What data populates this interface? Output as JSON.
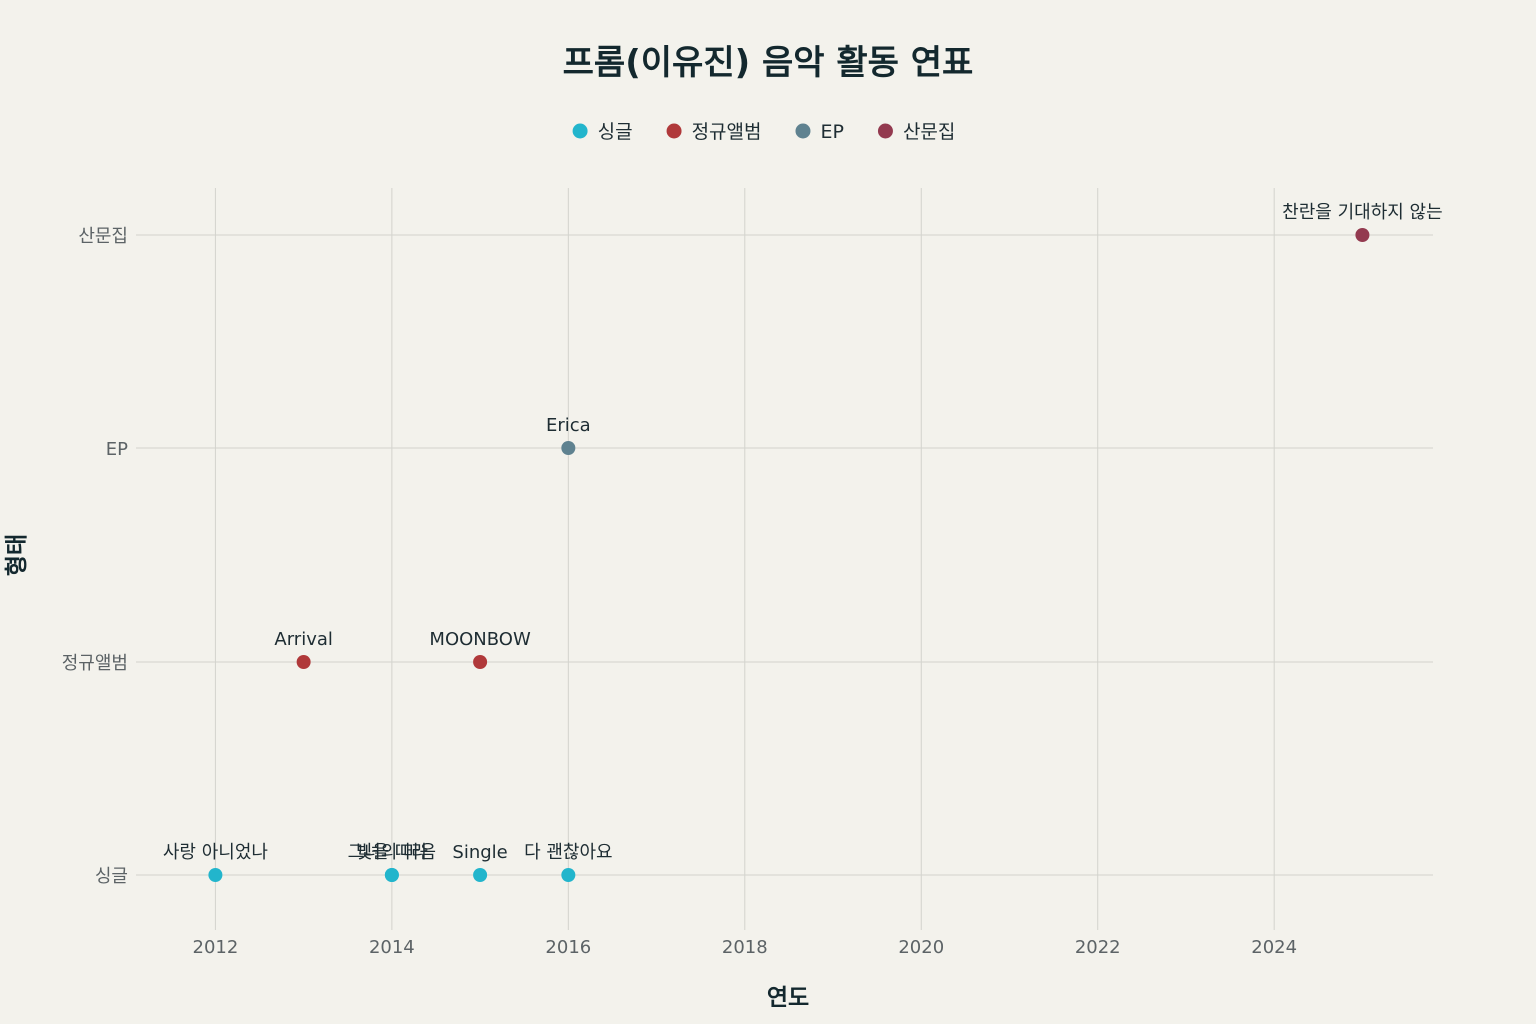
{
  "chart_data": {
    "type": "scatter",
    "title": "프롬(이유진) 음악 활동 연표",
    "xlabel": "연도",
    "ylabel": "형태",
    "xlim": [
      2011.1,
      2025.8
    ],
    "x_ticks": [
      2012,
      2014,
      2016,
      2018,
      2020,
      2022,
      2024
    ],
    "categories": [
      "싱글",
      "정규앨범",
      "EP",
      "산문집"
    ],
    "legend_position": "top-center",
    "grid": true,
    "series": [
      {
        "name": "싱글",
        "color": "#22b5cc",
        "points": [
          {
            "x": 2012,
            "y": "싱글",
            "label": "사랑 아니었나"
          },
          {
            "x": 2014,
            "y": "싱글",
            "label": "그녀의 마음"
          },
          {
            "x": 2014,
            "y": "싱글",
            "label": "빛을 따라"
          },
          {
            "x": 2015,
            "y": "싱글",
            "label": "Single"
          },
          {
            "x": 2016,
            "y": "싱글",
            "label": "다 괜찮아요"
          }
        ]
      },
      {
        "name": "정규앨범",
        "color": "#b0393a",
        "points": [
          {
            "x": 2013,
            "y": "정규앨범",
            "label": "Arrival"
          },
          {
            "x": 2015,
            "y": "정규앨범",
            "label": "MOONBOW"
          }
        ]
      },
      {
        "name": "EP",
        "color": "#5f8290",
        "points": [
          {
            "x": 2016,
            "y": "EP",
            "label": "Erica"
          }
        ]
      },
      {
        "name": "산문집",
        "color": "#933a4f",
        "points": [
          {
            "x": 2025,
            "y": "산문집",
            "label": "찬란을 기대하지 않는"
          }
        ]
      }
    ]
  }
}
